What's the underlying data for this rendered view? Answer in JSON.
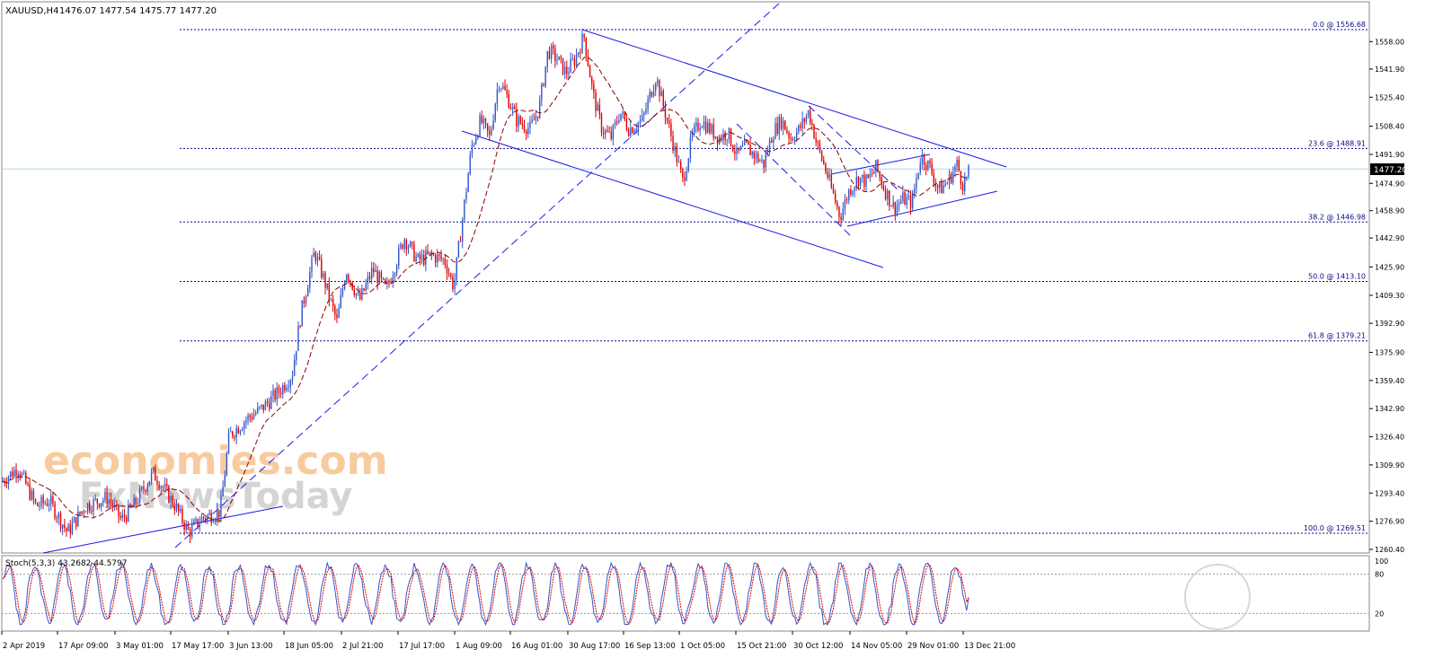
{
  "header": {
    "symbol": "XAUUSD,H4",
    "ohlc": "1476.07 1477.54 1475.77 1477.20"
  },
  "watermark": {
    "line1": "economies.com",
    "line2": "FxNewsToday"
  },
  "colors": {
    "bull": "#3355cc",
    "bear": "#dd0000",
    "grid": "#0a0a88",
    "trend": "#1a1ae6",
    "current_price_line": "#b0d8f0",
    "background": "#ffffff"
  },
  "chart_data": {
    "type": "candlestick",
    "ylim": [
      1260.4,
      1575
    ],
    "y_ticks": [
      "1558.00",
      "1541.90",
      "1525.40",
      "1508.40",
      "1491.90",
      "1474.90",
      "1458.90",
      "1442.90",
      "1425.90",
      "1409.30",
      "1392.90",
      "1375.90",
      "1359.40",
      "1342.90",
      "1326.40",
      "1309.90",
      "1293.40",
      "1276.90",
      "1260.40"
    ],
    "current_price": "1477.20",
    "fibonacci": [
      {
        "label": "0.0 @ 1556.68",
        "value": 1556.68
      },
      {
        "label": "23.6 @ 1488.91",
        "value": 1488.91
      },
      {
        "label": "38.2 @ 1446.98",
        "value": 1446.98
      },
      {
        "label": "50.0 @ 1413.10",
        "value": 1413.1
      },
      {
        "label": "61.8 @ 1379.21",
        "value": 1379.21
      },
      {
        "label": "100.0 @ 1269.51",
        "value": 1269.51
      }
    ],
    "x_labels": [
      "2 Apr 2019",
      "17 Apr 09:00",
      "3 May 01:00",
      "17 May 17:00",
      "3 Jun 13:00",
      "18 Jun 05:00",
      "2 Jul 21:00",
      "17 Jul 17:00",
      "1 Aug 09:00",
      "16 Aug 01:00",
      "30 Aug 17:00",
      "16 Sep 13:00",
      "1 Oct 05:00",
      "15 Oct 21:00",
      "30 Oct 12:00",
      "14 Nov 05:00",
      "29 Nov 01:00",
      "13 Dec 21:00"
    ],
    "anchors": [
      [
        0,
        1298
      ],
      [
        20,
        1307
      ],
      [
        40,
        1285
      ],
      [
        55,
        1288
      ],
      [
        75,
        1270
      ],
      [
        95,
        1285
      ],
      [
        120,
        1290
      ],
      [
        135,
        1277
      ],
      [
        150,
        1286
      ],
      [
        170,
        1304
      ],
      [
        180,
        1297
      ],
      [
        195,
        1285
      ],
      [
        210,
        1270
      ],
      [
        225,
        1278
      ],
      [
        245,
        1282
      ],
      [
        255,
        1325
      ],
      [
        275,
        1335
      ],
      [
        290,
        1340
      ],
      [
        310,
        1350
      ],
      [
        325,
        1360
      ],
      [
        335,
        1395
      ],
      [
        350,
        1430
      ],
      [
        360,
        1415
      ],
      [
        375,
        1390
      ],
      [
        385,
        1420
      ],
      [
        400,
        1402
      ],
      [
        415,
        1420
      ],
      [
        430,
        1408
      ],
      [
        450,
        1438
      ],
      [
        465,
        1425
      ],
      [
        480,
        1428
      ],
      [
        495,
        1425
      ],
      [
        505,
        1410
      ],
      [
        515,
        1450
      ],
      [
        525,
        1490
      ],
      [
        535,
        1505
      ],
      [
        545,
        1495
      ],
      [
        555,
        1528
      ],
      [
        565,
        1518
      ],
      [
        575,
        1505
      ],
      [
        590,
        1500
      ],
      [
        600,
        1512
      ],
      [
        610,
        1545
      ],
      [
        620,
        1540
      ],
      [
        630,
        1532
      ],
      [
        640,
        1540
      ],
      [
        650,
        1553
      ],
      [
        660,
        1520
      ],
      [
        670,
        1500
      ],
      [
        680,
        1495
      ],
      [
        690,
        1510
      ],
      [
        700,
        1500
      ],
      [
        715,
        1505
      ],
      [
        730,
        1530
      ],
      [
        740,
        1510
      ],
      [
        750,
        1490
      ],
      [
        760,
        1470
      ],
      [
        770,
        1495
      ],
      [
        780,
        1505
      ],
      [
        790,
        1500
      ],
      [
        800,
        1495
      ],
      [
        810,
        1498
      ],
      [
        820,
        1485
      ],
      [
        830,
        1490
      ],
      [
        850,
        1480
      ],
      [
        860,
        1498
      ],
      [
        870,
        1505
      ],
      [
        880,
        1495
      ],
      [
        890,
        1500
      ],
      [
        900,
        1510
      ],
      [
        910,
        1490
      ],
      [
        920,
        1475
      ],
      [
        935,
        1450
      ],
      [
        945,
        1465
      ],
      [
        955,
        1472
      ],
      [
        965,
        1470
      ],
      [
        975,
        1478
      ],
      [
        985,
        1465
      ],
      [
        995,
        1455
      ],
      [
        1005,
        1460
      ],
      [
        1015,
        1458
      ],
      [
        1025,
        1485
      ],
      [
        1035,
        1478
      ],
      [
        1045,
        1465
      ],
      [
        1055,
        1470
      ],
      [
        1065,
        1480
      ],
      [
        1072,
        1468
      ],
      [
        1080,
        1477
      ]
    ],
    "stoch": {
      "label": "Stoch(5,3,3) 43.2682 44.5797",
      "k": 43.2682,
      "d": 44.5797,
      "levels": [
        "80",
        "20"
      ],
      "ticks": [
        "100",
        "80",
        "20"
      ]
    }
  }
}
